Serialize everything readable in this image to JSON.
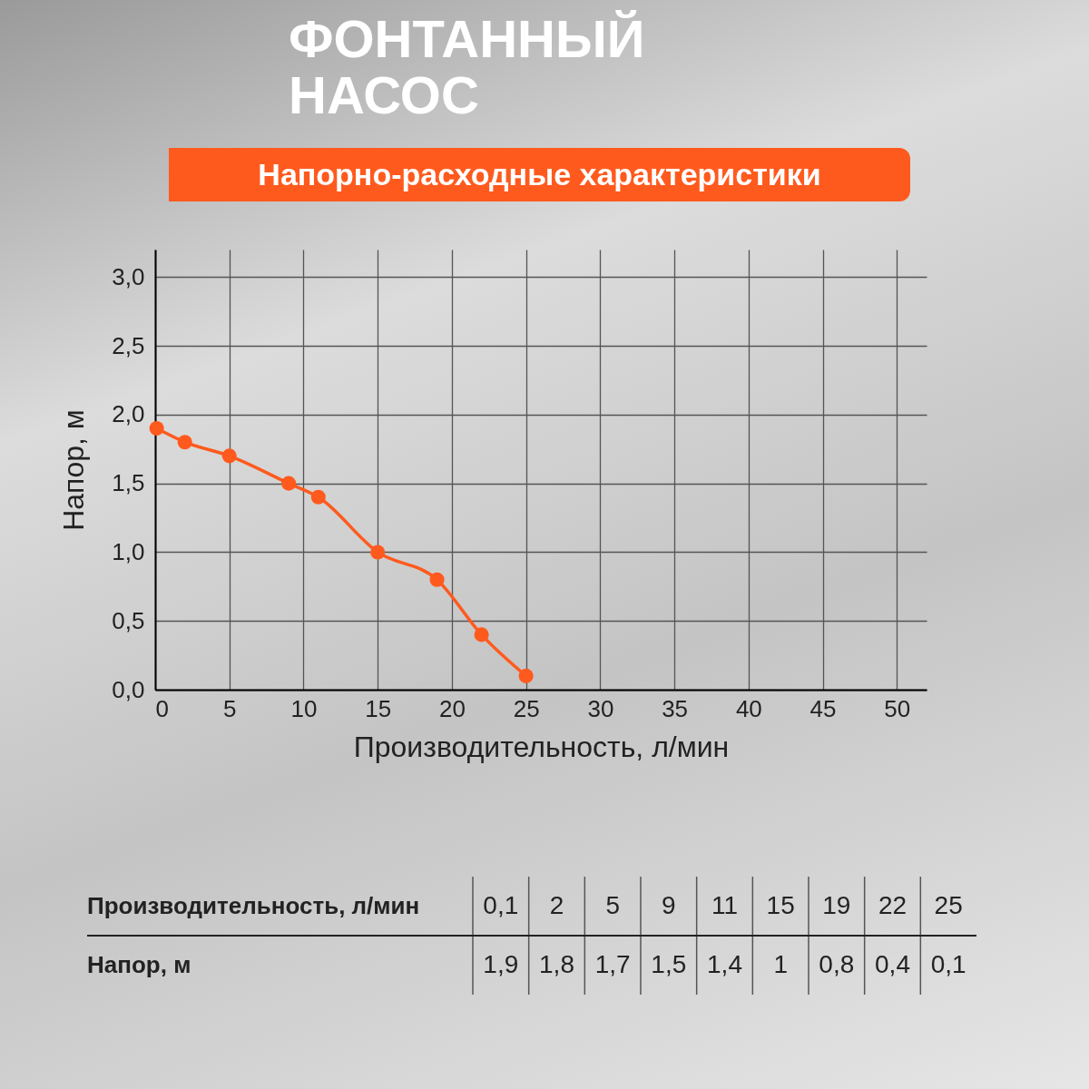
{
  "chart_data": {
    "type": "line",
    "title": "ФОНТАННЫЙ НАСОС",
    "subtitle": "Напорно-расходные характеристики",
    "xlabel": "Производительность, л/мин",
    "ylabel": "Напор, м",
    "x": [
      0.1,
      2,
      5,
      9,
      11,
      15,
      19,
      22,
      25
    ],
    "series": [
      {
        "color": "#ff5a1e",
        "values": [
          1.9,
          1.8,
          1.7,
          1.5,
          1.4,
          1,
          0.8,
          0.4,
          0.1
        ]
      }
    ],
    "annotations": [
      "0,1",
      "2",
      "5",
      "9",
      "11",
      "15",
      "19",
      "22",
      "25",
      "1,9",
      "1,8",
      "1,7",
      "1,5",
      "1,4",
      "1",
      "0,8",
      "0,4",
      "0,1"
    ],
    "xlim": [
      0,
      52
    ],
    "xticks": [
      0,
      5,
      10,
      15,
      20,
      25,
      30,
      35,
      40,
      45,
      50
    ],
    "ylim": [
      0,
      3.2
    ],
    "yticks": [
      {
        "value": 0,
        "label": "0,0"
      },
      {
        "value": 0.5,
        "label": "0,5"
      },
      {
        "value": 1,
        "label": "1,0"
      },
      {
        "value": 1.5,
        "label": "1,5"
      },
      {
        "value": 2,
        "label": "2,0"
      },
      {
        "value": 2.5,
        "label": "2,5"
      },
      {
        "value": 3,
        "label": "3,0"
      }
    ],
    "grid": true,
    "marker": "circle",
    "line_style": "solid"
  }
}
